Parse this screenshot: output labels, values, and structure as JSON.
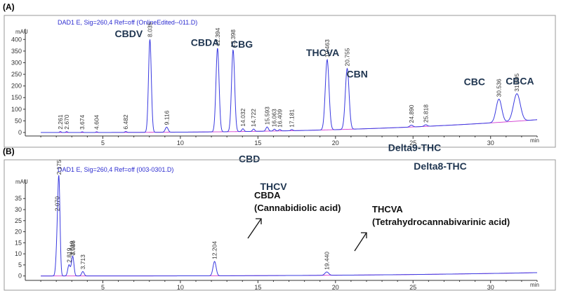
{
  "chart_data": [
    {
      "type": "line",
      "panel_label": "(A)",
      "header": "DAD1 E, Sig=260,4 Ref=off (OnlineEdited--011.D)",
      "ylabel": "mAU",
      "xlabel": "min",
      "xlim": [
        0,
        33
      ],
      "ylim": [
        -15,
        440
      ],
      "x_ticks": [
        5,
        10,
        15,
        20,
        25,
        30
      ],
      "y_ticks": [
        0,
        50,
        100,
        150,
        200,
        250,
        300,
        350,
        400
      ],
      "baseline_start": 0,
      "baseline_end": 55,
      "peaks": [
        {
          "rt": 2.261,
          "label": "2.261",
          "height": 4,
          "width": 0.05
        },
        {
          "rt": 2.67,
          "label": "2.670",
          "height": 4,
          "width": 0.05
        },
        {
          "rt": 3.674,
          "label": "3.674",
          "height": 3,
          "width": 0.05
        },
        {
          "rt": 4.604,
          "label": "4.604",
          "height": 3,
          "width": 0.05
        },
        {
          "rt": 6.482,
          "label": "6.482",
          "height": 4,
          "width": 0.06
        },
        {
          "rt": 8.035,
          "label": "8.035",
          "height": 400,
          "width": 0.09
        },
        {
          "rt": 9.116,
          "label": "9.116",
          "height": 22,
          "width": 0.09
        },
        {
          "rt": 12.394,
          "label": "12.394",
          "height": 360,
          "width": 0.1
        },
        {
          "rt": 13.398,
          "label": "13.398",
          "height": 352,
          "width": 0.1
        },
        {
          "rt": 14.032,
          "label": "14.032",
          "height": 12,
          "width": 0.07
        },
        {
          "rt": 14.722,
          "label": "14.722",
          "height": 10,
          "width": 0.07
        },
        {
          "rt": 15.593,
          "label": "15.593",
          "height": 18,
          "width": 0.08
        },
        {
          "rt": 16.063,
          "label": "16.063",
          "height": 8,
          "width": 0.07
        },
        {
          "rt": 16.409,
          "label": "16.409",
          "height": 6,
          "width": 0.07
        },
        {
          "rt": 17.181,
          "label": "17.181",
          "height": 5,
          "width": 0.07
        },
        {
          "rt": 19.463,
          "label": "19.463",
          "height": 302,
          "width": 0.12
        },
        {
          "rt": 20.755,
          "label": "20.755",
          "height": 262,
          "width": 0.12
        },
        {
          "rt": 24.89,
          "label": "24.890",
          "height": 8,
          "width": 0.1
        },
        {
          "rt": 25.818,
          "label": "25.818",
          "height": 7,
          "width": 0.1
        },
        {
          "rt": 30.536,
          "label": "30.536",
          "height": 100,
          "width": 0.18
        },
        {
          "rt": 31.695,
          "label": "31.695",
          "height": 118,
          "width": 0.22
        }
      ],
      "compounds": [
        {
          "name": "CBDV",
          "rt": 8.035
        },
        {
          "name": "CBDA",
          "rt": 12.394
        },
        {
          "name": "CBG",
          "rt": 13.398
        },
        {
          "name": "CBD",
          "rt": 14.032
        },
        {
          "name": "THCV",
          "rt": 15.593
        },
        {
          "name": "THCVA",
          "rt": 19.463
        },
        {
          "name": "CBN",
          "rt": 20.755
        },
        {
          "name": "Delta9-THC",
          "rt": 24.89
        },
        {
          "name": "Delta8-THC",
          "rt": 25.818
        },
        {
          "name": "CBC",
          "rt": 30.536
        },
        {
          "name": "CBCA",
          "rt": 31.695
        }
      ]
    },
    {
      "type": "line",
      "panel_label": "(B)",
      "header": "DAD1 E, Sig=260,4 Ref=off (003-0301.D)",
      "ylabel": "mAU",
      "xlabel": "min",
      "xlim": [
        0,
        33
      ],
      "ylim": [
        -2,
        43
      ],
      "x_ticks": [
        5,
        10,
        15,
        20,
        25,
        30
      ],
      "y_ticks": [
        0,
        5,
        10,
        15,
        20,
        25,
        30,
        35
      ],
      "baseline_start": 0,
      "baseline_end": 1.5,
      "peaks": [
        {
          "rt": 2.07,
          "label": "2.070",
          "height": 16,
          "width": 0.08
        },
        {
          "rt": 2.175,
          "label": "2.175",
          "height": 38,
          "width": 0.07
        },
        {
          "rt": 2.819,
          "label": "2.819",
          "height": 5,
          "width": 0.08
        },
        {
          "rt": 3.019,
          "label": "3.019",
          "height": 4.5,
          "width": 0.07
        },
        {
          "rt": 3.086,
          "label": "3.086",
          "height": 5.5,
          "width": 0.07
        },
        {
          "rt": 3.713,
          "label": "3.713",
          "height": 2,
          "width": 0.08
        },
        {
          "rt": 12.204,
          "label": "12.204",
          "height": 6.5,
          "width": 0.1
        },
        {
          "rt": 19.44,
          "label": "19.440",
          "height": 1.5,
          "width": 0.12
        }
      ],
      "compounds": [
        {
          "name": "CBDA",
          "full_name": "(Cannabidiolic acid)",
          "rt": 12.204
        },
        {
          "name": "THCVA",
          "full_name": "(Tetrahydrocannabivarinic acid)",
          "rt": 19.44
        }
      ]
    }
  ]
}
